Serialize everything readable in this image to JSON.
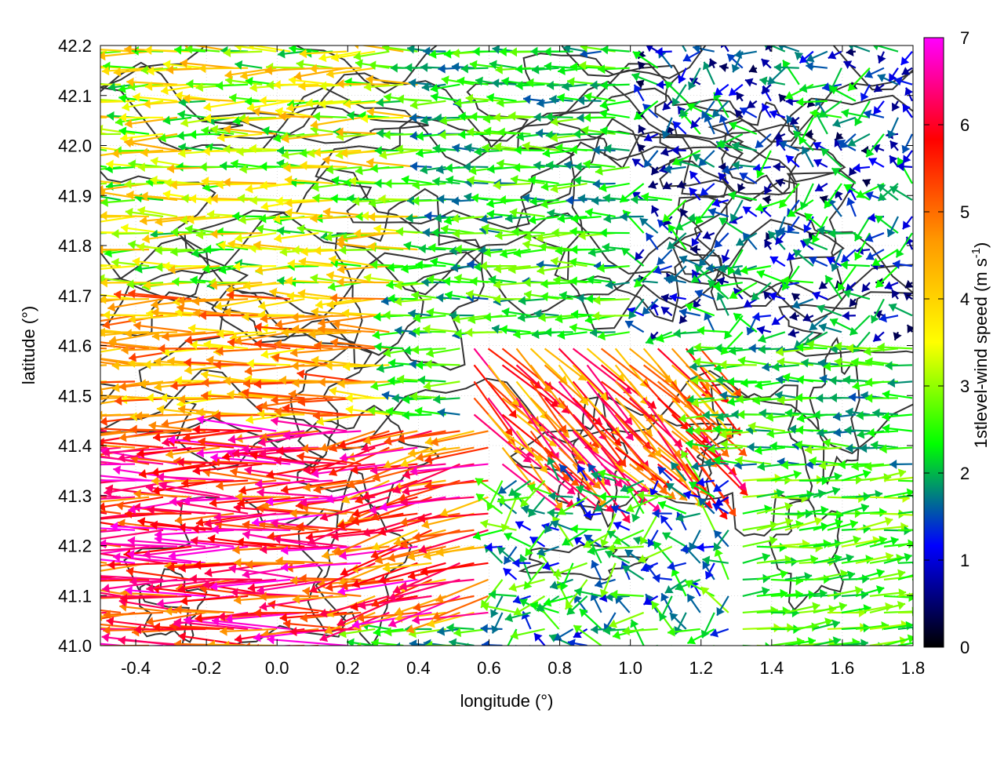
{
  "chart_data": {
    "type": "vector-field",
    "xlabel": "longitude (°)",
    "ylabel": "latitude (°)",
    "xlim": [
      -0.5,
      1.8
    ],
    "ylim": [
      41.0,
      42.2
    ],
    "x_ticks": [
      "-0.4",
      "-0.2",
      "0.0",
      "0.2",
      "0.4",
      "0.6",
      "0.8",
      "1.0",
      "1.2",
      "1.4",
      "1.6",
      "1.8"
    ],
    "x_tick_values": [
      -0.4,
      -0.2,
      0.0,
      0.2,
      0.4,
      0.6,
      0.8,
      1.0,
      1.2,
      1.4,
      1.6,
      1.8
    ],
    "y_ticks": [
      "41.0",
      "41.1",
      "41.2",
      "41.3",
      "41.4",
      "41.5",
      "41.6",
      "41.7",
      "41.8",
      "41.9",
      "42.0",
      "42.1",
      "42.2"
    ],
    "y_tick_values": [
      41.0,
      41.1,
      41.2,
      41.3,
      41.4,
      41.5,
      41.6,
      41.7,
      41.8,
      41.9,
      42.0,
      42.1,
      42.2
    ],
    "grid": true,
    "colorbar": {
      "label_main": "1stlevel-wind speed (m s",
      "label_sup": "-1",
      "label_close": ")",
      "range": [
        0,
        7
      ],
      "ticks": [
        "0",
        "1",
        "2",
        "3",
        "4",
        "5",
        "6",
        "7"
      ],
      "tick_values": [
        0,
        1,
        2,
        3,
        4,
        5,
        6,
        7
      ],
      "palette": [
        "#000000",
        "#0000ff",
        "#00ff00",
        "#ffff00",
        "#ff9900",
        "#ff0000",
        "#ff00ff"
      ]
    },
    "contour_color": "#333333",
    "wind_regions": [
      {
        "lon": [
          -0.5,
          0.25
        ],
        "lat": [
          41.0,
          41.45
        ],
        "dir": "westward",
        "speed_min": 4.5,
        "speed_max": 7.0
      },
      {
        "lon": [
          -0.5,
          0.3
        ],
        "lat": [
          41.45,
          41.7
        ],
        "dir": "westward",
        "speed_min": 3.5,
        "speed_max": 5.5
      },
      {
        "lon": [
          -0.5,
          0.4
        ],
        "lat": [
          41.7,
          42.2
        ],
        "dir": "westward",
        "speed_min": 2.0,
        "speed_max": 4.5
      },
      {
        "lon": [
          0.25,
          0.6
        ],
        "lat": [
          41.05,
          41.45
        ],
        "dir": "west-northwest",
        "speed_min": 4.0,
        "speed_max": 7.0
      },
      {
        "lon": [
          0.4,
          1.0
        ],
        "lat": [
          41.6,
          42.2
        ],
        "dir": "westward",
        "speed_min": 1.5,
        "speed_max": 3.0
      },
      {
        "lon": [
          0.5,
          1.2
        ],
        "lat": [
          41.35,
          41.6
        ],
        "dir": "southeast",
        "speed_min": 4.0,
        "speed_max": 6.5
      },
      {
        "lon": [
          1.0,
          1.8
        ],
        "lat": [
          41.6,
          42.2
        ],
        "dir": "variable",
        "speed_min": 0.3,
        "speed_max": 2.5
      },
      {
        "lon": [
          0.6,
          1.3
        ],
        "lat": [
          41.0,
          41.35
        ],
        "dir": "variable",
        "speed_min": 1.0,
        "speed_max": 3.0
      },
      {
        "lon": [
          1.3,
          1.8
        ],
        "lat": [
          41.0,
          41.35
        ],
        "dir": "eastward",
        "speed_min": 2.0,
        "speed_max": 3.2
      }
    ]
  }
}
